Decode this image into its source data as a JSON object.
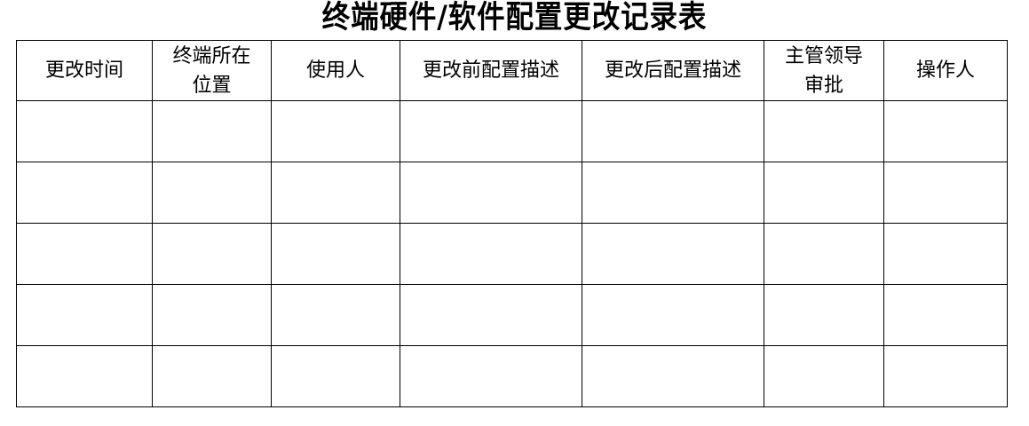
{
  "title": "终端硬件/软件配置更改记录表",
  "table": {
    "headers": [
      {
        "line1": "更改时间",
        "line2": ""
      },
      {
        "line1": "终端所在",
        "line2": "位置"
      },
      {
        "line1": "使用人",
        "line2": ""
      },
      {
        "line1": "更改前配置描述",
        "line2": ""
      },
      {
        "line1": "更改后配置描述",
        "line2": ""
      },
      {
        "line1": "主管领导",
        "line2": "审批"
      },
      {
        "line1": "操作人",
        "line2": ""
      }
    ],
    "rows": [
      [
        "",
        "",
        "",
        "",
        "",
        "",
        ""
      ],
      [
        "",
        "",
        "",
        "",
        "",
        "",
        ""
      ],
      [
        "",
        "",
        "",
        "",
        "",
        "",
        ""
      ],
      [
        "",
        "",
        "",
        "",
        "",
        "",
        ""
      ],
      [
        "",
        "",
        "",
        "",
        "",
        "",
        ""
      ]
    ]
  }
}
